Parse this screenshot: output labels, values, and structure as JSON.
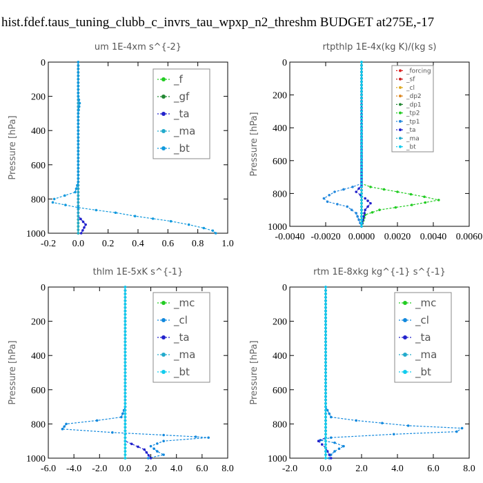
{
  "title": "hist.fdef.taus_tuning_clubb_c_invrs_tau_wpxp_n2_threshm  BUDGET at275E,-17",
  "chart_data": [
    {
      "type": "line",
      "title": "um  1E-4xm s^{-2}",
      "ylabel": "Pressure [hPa]",
      "xlim": [
        -0.2,
        1.0
      ],
      "ylim": [
        1000,
        0
      ],
      "xticks": [
        "-0.2",
        "0.0",
        "0.2",
        "0.4",
        "0.6",
        "0.8",
        "1.0"
      ],
      "yticks": [
        "0",
        "200",
        "400",
        "600",
        "800",
        "1000"
      ],
      "legend_position": "top-right",
      "series": [
        {
          "name": "_f",
          "color": "#22cc22",
          "points": [
            [
              0.0,
              0
            ],
            [
              0.0,
              200
            ],
            [
              0.0,
              400
            ],
            [
              0.0,
              600
            ],
            [
              0.0,
              800
            ],
            [
              0.0,
              1000
            ]
          ]
        },
        {
          "name": "_gf",
          "color": "#228833",
          "points": [
            [
              0.0,
              0
            ],
            [
              0.0,
              200
            ],
            [
              0.0,
              400
            ],
            [
              0.0,
              600
            ],
            [
              0.0,
              800
            ],
            [
              0.0,
              1000
            ]
          ]
        },
        {
          "name": "_ta",
          "color": "#2222cc",
          "points": [
            [
              0.0,
              0
            ],
            [
              0.0,
              500
            ],
            [
              0.0,
              900
            ],
            [
              0.05,
              950
            ],
            [
              0.02,
              1000
            ]
          ]
        },
        {
          "name": "_ma",
          "color": "#22aacc",
          "points": [
            [
              0.0,
              0
            ],
            [
              0.0,
              1000
            ]
          ]
        },
        {
          "name": "_bt",
          "color": "#1199dd",
          "points": [
            [
              0.0,
              0
            ],
            [
              0.0,
              200
            ],
            [
              0.01,
              240
            ],
            [
              0.0,
              300
            ],
            [
              0.0,
              600
            ],
            [
              0.0,
              700
            ],
            [
              -0.02,
              760
            ],
            [
              -0.16,
              800
            ],
            [
              -0.17,
              820
            ],
            [
              0.0,
              850
            ],
            [
              0.12,
              865
            ],
            [
              0.25,
              880
            ],
            [
              0.38,
              900
            ],
            [
              0.5,
              915
            ],
            [
              0.62,
              930
            ],
            [
              0.74,
              950
            ],
            [
              0.84,
              970
            ],
            [
              0.9,
              985
            ],
            [
              0.92,
              1000
            ]
          ]
        }
      ]
    },
    {
      "type": "line",
      "title": "rtpthlp  1E-4x(kg K)/(kg s)",
      "ylabel": "Pressure [hPa]",
      "xlim": [
        -0.004,
        0.006
      ],
      "ylim": [
        1000,
        0
      ],
      "xticks": [
        "-0.0040",
        "-0.0020",
        "0.0000",
        "0.0020",
        "0.0040",
        "0.0060"
      ],
      "yticks": [
        "0",
        "200",
        "400",
        "600",
        "800",
        "1000"
      ],
      "legend_position": "top-right",
      "series": [
        {
          "name": "_forcing",
          "color": "#dd2222",
          "points": [
            [
              0.0,
              0
            ],
            [
              0.0,
              1000
            ]
          ]
        },
        {
          "name": "_sf",
          "color": "#cc2222",
          "points": [
            [
              0.0,
              0
            ],
            [
              0.0,
              1000
            ]
          ]
        },
        {
          "name": "_cl",
          "color": "#ddaa22",
          "points": [
            [
              0.0,
              0
            ],
            [
              0.0,
              1000
            ]
          ]
        },
        {
          "name": "_dp2",
          "color": "#dd8822",
          "points": [
            [
              0.0,
              0
            ],
            [
              0.0,
              1000
            ]
          ]
        },
        {
          "name": "_dp1",
          "color": "#228833",
          "points": [
            [
              0.0,
              0
            ],
            [
              0.0,
              1000
            ]
          ]
        },
        {
          "name": "_tp2",
          "color": "#22cc22",
          "points": [
            [
              0.0,
              0
            ],
            [
              0.0,
              740
            ],
            [
              0.0005,
              760
            ],
            [
              0.002,
              790
            ],
            [
              0.0035,
              820
            ],
            [
              0.0043,
              840
            ],
            [
              0.0028,
              870
            ],
            [
              0.001,
              900
            ],
            [
              0.0002,
              930
            ],
            [
              0.0,
              1000
            ]
          ]
        },
        {
          "name": "_tp1",
          "color": "#2288dd",
          "points": [
            [
              0.0,
              0
            ],
            [
              0.0,
              740
            ],
            [
              -0.0005,
              760
            ],
            [
              -0.0015,
              790
            ],
            [
              -0.0021,
              830
            ],
            [
              -0.0019,
              850
            ],
            [
              -0.0008,
              880
            ],
            [
              -0.0003,
              920
            ],
            [
              0.0,
              1000
            ]
          ]
        },
        {
          "name": "_ta",
          "color": "#2222cc",
          "points": [
            [
              0.0,
              0
            ],
            [
              0.0,
              750
            ],
            [
              -0.0003,
              790
            ],
            [
              0.0002,
              830
            ],
            [
              0.0005,
              860
            ],
            [
              0.0002,
              900
            ],
            [
              0.0,
              1000
            ]
          ]
        },
        {
          "name": "_ma",
          "color": "#22aacc",
          "points": [
            [
              0.0,
              0
            ],
            [
              0.0,
              1000
            ]
          ]
        },
        {
          "name": "_bt",
          "color": "#11ccee",
          "points": [
            [
              0.0,
              0
            ],
            [
              0.0,
              1000
            ]
          ]
        }
      ]
    },
    {
      "type": "line",
      "title": "thlm  1E-5xK s^{-1}",
      "ylabel": "Pressure [hPa]",
      "xlim": [
        -6.0,
        8.0
      ],
      "ylim": [
        1000,
        0
      ],
      "xticks": [
        "-6.0",
        "-4.0",
        "-2.0",
        "0.0",
        "2.0",
        "4.0",
        "6.0",
        "8.0"
      ],
      "yticks": [
        "0",
        "200",
        "400",
        "600",
        "800",
        "1000"
      ],
      "legend_position": "top-right",
      "series": [
        {
          "name": "_mc",
          "color": "#22cc22",
          "points": [
            [
              0.0,
              0
            ],
            [
              0.0,
              1000
            ]
          ]
        },
        {
          "name": "_cl",
          "color": "#1188dd",
          "points": [
            [
              0.0,
              0
            ],
            [
              0.0,
              700
            ],
            [
              -0.3,
              760
            ],
            [
              -2.2,
              780
            ],
            [
              -4.6,
              800
            ],
            [
              -4.9,
              830
            ],
            [
              -1.0,
              850
            ],
            [
              3.0,
              865
            ],
            [
              5.5,
              875
            ],
            [
              6.5,
              880
            ],
            [
              3.0,
              900
            ],
            [
              2.0,
              930
            ],
            [
              2.5,
              960
            ],
            [
              3.0,
              980
            ],
            [
              1.8,
              1000
            ]
          ]
        },
        {
          "name": "_ta",
          "color": "#2222cc",
          "points": [
            [
              0.0,
              0
            ],
            [
              0.0,
              900
            ],
            [
              1.5,
              950
            ],
            [
              2.0,
              1000
            ]
          ]
        },
        {
          "name": "_ma",
          "color": "#22aacc",
          "points": [
            [
              0.0,
              0
            ],
            [
              0.0,
              1000
            ]
          ]
        },
        {
          "name": "_bt",
          "color": "#11ccee",
          "points": [
            [
              0.0,
              0
            ],
            [
              0.0,
              1000
            ]
          ]
        }
      ]
    },
    {
      "type": "line",
      "title": "rtm  1E-8xkg kg^{-1} s^{-1}",
      "ylabel": "Pressure [hPa]",
      "xlim": [
        -2.0,
        8.0
      ],
      "ylim": [
        1000,
        0
      ],
      "xticks": [
        "-2.0",
        "0.0",
        "2.0",
        "4.0",
        "6.0",
        "8.0"
      ],
      "yticks": [
        "0",
        "200",
        "400",
        "600",
        "800",
        "1000"
      ],
      "legend_position": "top-right",
      "series": [
        {
          "name": "_mc",
          "color": "#22cc22",
          "points": [
            [
              0.0,
              0
            ],
            [
              0.0,
              1000
            ]
          ]
        },
        {
          "name": "_cl",
          "color": "#1188dd",
          "points": [
            [
              0.0,
              0
            ],
            [
              0.0,
              700
            ],
            [
              0.3,
              760
            ],
            [
              1.7,
              780
            ],
            [
              4.6,
              810
            ],
            [
              7.6,
              825
            ],
            [
              7.3,
              845
            ],
            [
              3.8,
              860
            ],
            [
              0.3,
              880
            ],
            [
              -0.3,
              895
            ],
            [
              0.5,
              910
            ],
            [
              1.0,
              930
            ],
            [
              0.5,
              960
            ],
            [
              0.3,
              980
            ],
            [
              0.2,
              1000
            ]
          ]
        },
        {
          "name": "_ta",
          "color": "#2222cc",
          "points": [
            [
              0.0,
              0
            ],
            [
              0.0,
              880
            ],
            [
              -0.4,
              900
            ],
            [
              0.0,
              940
            ],
            [
              0.3,
              1000
            ]
          ]
        },
        {
          "name": "_ma",
          "color": "#22aacc",
          "points": [
            [
              0.0,
              0
            ],
            [
              0.0,
              1000
            ]
          ]
        },
        {
          "name": "_bt",
          "color": "#11ccee",
          "points": [
            [
              0.0,
              0
            ],
            [
              0.0,
              1000
            ]
          ]
        }
      ]
    }
  ]
}
